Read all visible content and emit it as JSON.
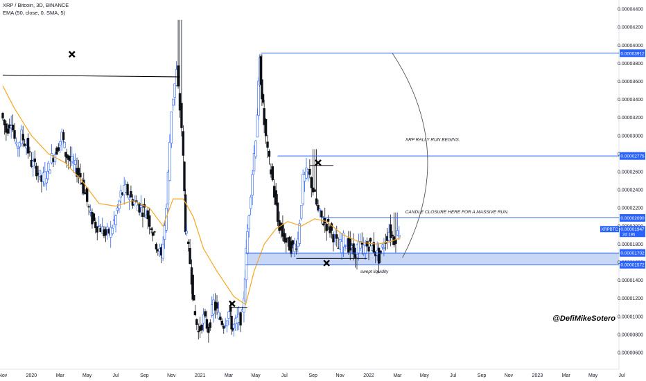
{
  "header": {
    "title": "XRP / Bitcoin, 3D, BINANCE",
    "indicator": "EMA (50, close, 0, SMA, 5)"
  },
  "watermark": "@DefiMikeSotero",
  "chart_data": {
    "type": "candlestick",
    "symbol": "XRPBTC",
    "interval": "3D",
    "exchange": "BINANCE",
    "ylim": [
      6e-06,
      4.5e-05
    ],
    "yticks": [
      "0.00000600",
      "0.00000800",
      "0.00001000",
      "0.00001200",
      "0.00001400",
      "0.00001600",
      "0.00001800",
      "0.00002000",
      "0.00002200",
      "0.00002400",
      "0.00002600",
      "0.00002800",
      "0.00003000",
      "0.00003200",
      "0.00003400",
      "0.00003600",
      "0.00003800",
      "0.00004000",
      "0.00004200",
      "0.00004400"
    ],
    "xticks": [
      {
        "label": "Nov",
        "t": 2019.83
      },
      {
        "label": "2020",
        "t": 2020.0
      },
      {
        "label": "Mar",
        "t": 2020.17
      },
      {
        "label": "May",
        "t": 2020.33
      },
      {
        "label": "Jul",
        "t": 2020.5
      },
      {
        "label": "Sep",
        "t": 2020.67
      },
      {
        "label": "Nov",
        "t": 2020.83
      },
      {
        "label": "2021",
        "t": 2021.0
      },
      {
        "label": "Mar",
        "t": 2021.17
      },
      {
        "label": "May",
        "t": 2021.33
      },
      {
        "label": "Jul",
        "t": 2021.5
      },
      {
        "label": "Sep",
        "t": 2021.67
      },
      {
        "label": "Nov",
        "t": 2021.83
      },
      {
        "label": "2022",
        "t": 2022.0
      },
      {
        "label": "Mar",
        "t": 2022.17
      },
      {
        "label": "May",
        "t": 2022.33
      },
      {
        "label": "Jul",
        "t": 2022.5
      },
      {
        "label": "Sep",
        "t": 2022.67
      },
      {
        "label": "Nov",
        "t": 2022.83
      },
      {
        "label": "2023",
        "t": 2023.0
      },
      {
        "label": "Mar",
        "t": 2023.17
      },
      {
        "label": "May",
        "t": 2023.33
      },
      {
        "label": "Jul",
        "t": 2023.5
      }
    ],
    "xlim": [
      2019.83,
      2023.5
    ],
    "close_series": [
      [
        2019.83,
        32.5
      ],
      [
        2019.86,
        30.5
      ],
      [
        2019.89,
        31.8
      ],
      [
        2019.92,
        28.5
      ],
      [
        2019.95,
        30.0
      ],
      [
        2019.98,
        29.0
      ],
      [
        2020.01,
        27.0
      ],
      [
        2020.04,
        26.3
      ],
      [
        2020.07,
        25.0
      ],
      [
        2020.1,
        25.8
      ],
      [
        2020.13,
        27.5
      ],
      [
        2020.16,
        28.5
      ],
      [
        2020.19,
        30.0
      ],
      [
        2020.21,
        28.0
      ],
      [
        2020.24,
        27.2
      ],
      [
        2020.27,
        26.5
      ],
      [
        2020.3,
        25.5
      ],
      [
        2020.33,
        23.5
      ],
      [
        2020.36,
        21.0
      ],
      [
        2020.39,
        20.2
      ],
      [
        2020.42,
        19.8
      ],
      [
        2020.45,
        19.0
      ],
      [
        2020.48,
        19.5
      ],
      [
        2020.51,
        21.0
      ],
      [
        2020.54,
        23.5
      ],
      [
        2020.57,
        24.0
      ],
      [
        2020.6,
        23.0
      ],
      [
        2020.63,
        22.5
      ],
      [
        2020.66,
        22.0
      ],
      [
        2020.69,
        21.5
      ],
      [
        2020.72,
        20.0
      ],
      [
        2020.75,
        18.0
      ],
      [
        2020.78,
        16.5
      ],
      [
        2020.81,
        22.0
      ],
      [
        2020.84,
        33.0
      ],
      [
        2020.87,
        37.0
      ],
      [
        2020.9,
        31.0
      ],
      [
        2020.92,
        20.0
      ],
      [
        2020.95,
        16.0
      ],
      [
        2020.97,
        11.0
      ],
      [
        2021.0,
        8.2
      ],
      [
        2021.03,
        9.8
      ],
      [
        2021.06,
        8.6
      ],
      [
        2021.09,
        11.5
      ],
      [
        2021.12,
        10.0
      ],
      [
        2021.15,
        9.2
      ],
      [
        2021.18,
        10.5
      ],
      [
        2021.2,
        8.5
      ],
      [
        2021.23,
        9.5
      ],
      [
        2021.26,
        10.0
      ],
      [
        2021.28,
        17.0
      ],
      [
        2021.31,
        24.0
      ],
      [
        2021.34,
        30.0
      ],
      [
        2021.36,
        38.0
      ],
      [
        2021.38,
        33.0
      ],
      [
        2021.41,
        28.0
      ],
      [
        2021.44,
        25.0
      ],
      [
        2021.47,
        20.5
      ],
      [
        2021.5,
        19.0
      ],
      [
        2021.53,
        18.0
      ],
      [
        2021.56,
        17.5
      ],
      [
        2021.59,
        18.5
      ],
      [
        2021.62,
        25.0
      ],
      [
        2021.65,
        26.0
      ],
      [
        2021.68,
        24.0
      ],
      [
        2021.71,
        21.5
      ],
      [
        2021.74,
        20.5
      ],
      [
        2021.77,
        20.0
      ],
      [
        2021.8,
        19.0
      ],
      [
        2021.83,
        17.5
      ],
      [
        2021.86,
        18.5
      ],
      [
        2021.89,
        17.8
      ],
      [
        2021.92,
        17.0
      ],
      [
        2021.95,
        17.8
      ],
      [
        2021.98,
        17.5
      ],
      [
        2022.01,
        18.0
      ],
      [
        2022.04,
        17.5
      ],
      [
        2022.07,
        16.5
      ],
      [
        2022.1,
        18.0
      ],
      [
        2022.13,
        19.5
      ],
      [
        2022.16,
        18.5
      ],
      [
        2022.19,
        19.5
      ]
    ],
    "ema_series": [
      [
        2019.83,
        35.5
      ],
      [
        2019.9,
        33.0
      ],
      [
        2020.0,
        30.0
      ],
      [
        2020.1,
        28.0
      ],
      [
        2020.2,
        27.0
      ],
      [
        2020.3,
        25.0
      ],
      [
        2020.4,
        22.5
      ],
      [
        2020.5,
        22.2
      ],
      [
        2020.6,
        22.8
      ],
      [
        2020.7,
        22.0
      ],
      [
        2020.78,
        20.0
      ],
      [
        2020.84,
        23.0
      ],
      [
        2020.9,
        23.0
      ],
      [
        2020.96,
        21.0
      ],
      [
        2021.02,
        17.5
      ],
      [
        2021.1,
        15.0
      ],
      [
        2021.2,
        12.2
      ],
      [
        2021.27,
        11.3
      ],
      [
        2021.32,
        15.0
      ],
      [
        2021.38,
        18.0
      ],
      [
        2021.45,
        19.7
      ],
      [
        2021.52,
        20.5
      ],
      [
        2021.6,
        20.0
      ],
      [
        2021.68,
        20.8
      ],
      [
        2021.75,
        20.5
      ],
      [
        2021.85,
        19.0
      ],
      [
        2021.95,
        18.2
      ],
      [
        2022.05,
        18.0
      ],
      [
        2022.13,
        18.3
      ],
      [
        2022.19,
        18.7
      ]
    ],
    "highlight_zone": {
      "low": 1.572e-05,
      "high": 1.702e-05
    },
    "levels": [
      {
        "name": "level-3912",
        "label": "0.00003912",
        "value": 3.912e-05,
        "t_start": 2021.36
      },
      {
        "name": "level-2775",
        "label": "0.00002775",
        "value": 2.775e-05,
        "t_start": 2021.46
      },
      {
        "name": "level-2090",
        "label": "0.00002090",
        "value": 2.09e-05,
        "t_start": 2021.72
      },
      {
        "name": "level-1702",
        "label": "0.00001702",
        "value": 1.702e-05,
        "t_start": 2021.27
      },
      {
        "name": "level-1572",
        "label": "0.00001572",
        "value": 1.572e-05,
        "t_start": 2021.27
      }
    ],
    "price_tag": {
      "symbol": "XRPBTC",
      "price": "0.00001947",
      "countdown": "2d 19h",
      "value": 1.947e-05
    },
    "annotations": [
      {
        "name": "annotation-rally",
        "text": "XRP RALLY RUN BEGINS.",
        "t": 2022.34,
        "v": 2.94e-05
      },
      {
        "name": "annotation-candle-closure",
        "text": "CANDLE CLOSURE HERE FOR A MASSIVE RUN.",
        "t": 2022.34,
        "v": 2.14e-05
      },
      {
        "name": "annotation-swept-liquidity",
        "text": "swept liquidity",
        "t": 2021.95,
        "v": 1.48e-05
      }
    ],
    "trend_lines": [
      {
        "name": "resistance-line-2020",
        "t1": 2019.83,
        "v1": 3.67e-05,
        "t2": 2020.88,
        "v2": 3.65e-05
      },
      {
        "name": "resistance-line-2021-sep",
        "t1": 2021.65,
        "v1": 2.67e-05,
        "t2": 2021.79,
        "v2": 2.67e-05
      },
      {
        "name": "support-line-2021",
        "t1": 2021.57,
        "v1": 1.64e-05,
        "t2": 2021.99,
        "v2": 1.64e-05
      },
      {
        "name": "resistance-line-2021-mar",
        "t1": 2021.18,
        "v1": 1.1e-05,
        "t2": 2021.28,
        "v2": 1.1e-05
      }
    ],
    "cross_markers": [
      {
        "name": "cross-marker-1",
        "t": 2020.24,
        "v": 3.9e-05
      },
      {
        "name": "cross-marker-2",
        "t": 2021.19,
        "v": 1.14e-05
      },
      {
        "name": "cross-marker-3",
        "t": 2021.7,
        "v": 2.7e-05
      },
      {
        "name": "cross-marker-4",
        "t": 2021.75,
        "v": 1.59e-05
      }
    ],
    "colors": {
      "up": "#ffffff",
      "down": "#0d1117",
      "up_accent": "#2962ff",
      "ema": "#f5a623",
      "level": "#2962ff",
      "zone": "#bbcdf5",
      "price_tag": "#2962ff"
    }
  }
}
